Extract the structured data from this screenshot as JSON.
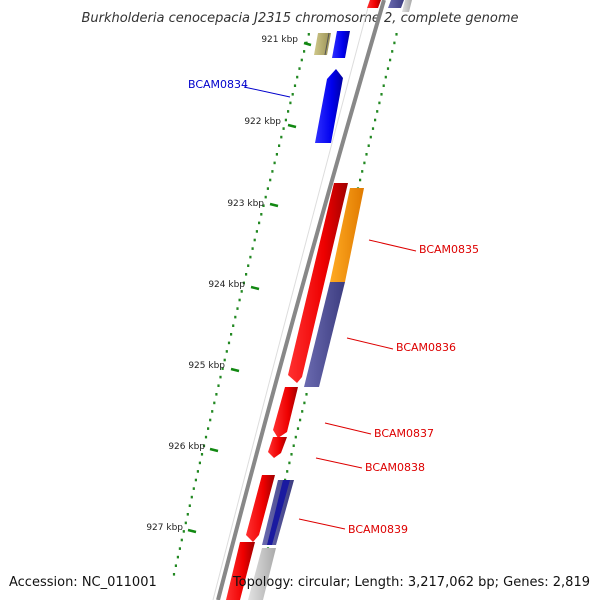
{
  "title": "Burkholderia cenocepacia J2315 chromosome 2, complete genome",
  "footer": {
    "accession": "Accession: NC_011001",
    "summary": "Topology: circular; Length: 3,217,062 bp; Genes: 2,819"
  },
  "ticks": [
    {
      "label": "921 kbp"
    },
    {
      "label": "922 kbp"
    },
    {
      "label": "923 kbp"
    },
    {
      "label": "924 kbp"
    },
    {
      "label": "925 kbp"
    },
    {
      "label": "926 kbp"
    },
    {
      "label": "927 kbp"
    }
  ],
  "genes": [
    {
      "label": "BCAM0834",
      "color": "#0000cc"
    },
    {
      "label": "BCAM0835",
      "color": "#dd0000"
    },
    {
      "label": "BCAM0836",
      "color": "#dd0000"
    },
    {
      "label": "BCAM0837",
      "color": "#dd0000"
    },
    {
      "label": "BCAM0838",
      "color": "#dd0000"
    },
    {
      "label": "BCAM0839",
      "color": "#dd0000"
    }
  ],
  "colors": {
    "backbone": "#888888",
    "forward_strand": "#0000ee",
    "reverse_strand": "#ee0000",
    "cds_orange": "#ff9900",
    "cds_purple": "#55559a",
    "cds_olive": "#b8b070",
    "cds_grey": "#cccccc",
    "gc_dots": "#228822"
  }
}
